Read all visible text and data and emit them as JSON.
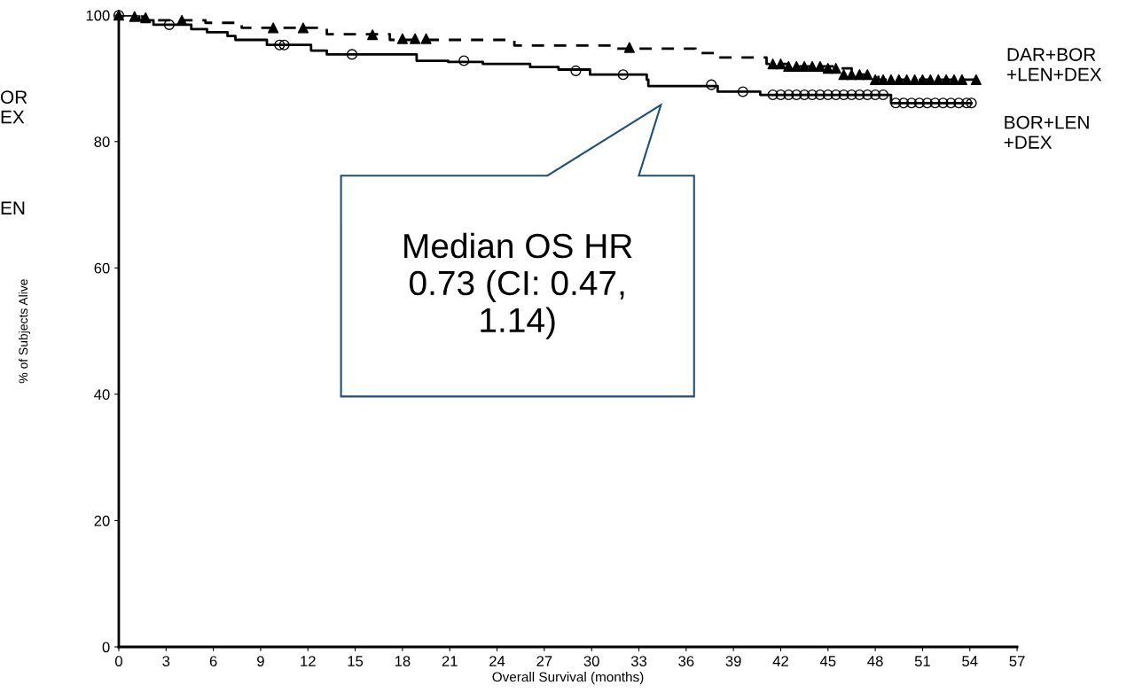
{
  "chart_data": {
    "type": "step",
    "xlabel": "Overall Survival (months)",
    "ylabel": "% of Subjects Alive",
    "xlim": [
      0,
      57
    ],
    "ylim": [
      0,
      100
    ],
    "xticks": [
      0,
      3,
      6,
      9,
      12,
      15,
      18,
      21,
      24,
      27,
      30,
      33,
      36,
      39,
      42,
      45,
      48,
      51,
      54,
      57
    ],
    "yticks": [
      0,
      20,
      40,
      60,
      80,
      100
    ],
    "grid": false,
    "legend": false,
    "series": [
      {
        "name": "DAR+BOR\n+LEN+DEX",
        "color": "#000000",
        "line_style": "dashed",
        "marker": "none",
        "x": [
          0,
          1.5,
          5.5,
          7.8,
          13.2,
          17.2,
          25.1,
          31.3,
          36.6,
          37.8,
          41.1,
          42.5,
          45.4,
          46.5,
          48.2,
          54.6
        ],
        "values": [
          100,
          99.2,
          98.8,
          98.0,
          97.0,
          96.1,
          95.2,
          94.7,
          94.0,
          93.3,
          92.3,
          91.9,
          91.6,
          90.6,
          89.8,
          89.8
        ]
      },
      {
        "name": "BOR+LEN\n+DEX",
        "color": "#000000",
        "line_style": "solid",
        "marker": "none",
        "x": [
          0,
          1.3,
          2.2,
          4.6,
          5.6,
          6.9,
          7.4,
          9.4,
          12.2,
          13.2,
          18.9,
          20.9,
          23.1,
          26.1,
          27.9,
          29.9,
          33.5,
          33.6,
          37.8,
          38.0,
          40.7,
          49.0,
          54.1
        ],
        "values": [
          100,
          99.2,
          98.5,
          97.8,
          97.3,
          96.7,
          96.1,
          95.3,
          94.4,
          93.8,
          92.8,
          92.6,
          92.3,
          91.8,
          91.4,
          90.6,
          89.8,
          88.8,
          88.8,
          87.9,
          87.4,
          86.1,
          86.1
        ]
      },
      {
        "type": "scatter",
        "color": "#000000",
        "marker": "triangle",
        "x": [
          0,
          1,
          1.7,
          4,
          9.8,
          11.7,
          16.1,
          18,
          18.8,
          19.5,
          32.4,
          41.5,
          42,
          42.5,
          43,
          43.5,
          44,
          44.5,
          45,
          45.5,
          46,
          46.5,
          47,
          47.5,
          48,
          48.5,
          49,
          49.5,
          50,
          50.5,
          51,
          51.5,
          52,
          52.5,
          53,
          53.5,
          54.4
        ],
        "values": [
          100,
          99.8,
          99.6,
          99.2,
          98.0,
          98.0,
          96.9,
          96.3,
          96.3,
          96.3,
          94.9,
          92.3,
          92.3,
          91.9,
          91.9,
          91.9,
          91.9,
          91.9,
          91.6,
          91.6,
          90.6,
          90.6,
          90.6,
          90.6,
          89.8,
          89.8,
          89.8,
          89.8,
          89.8,
          89.8,
          89.8,
          89.8,
          89.8,
          89.8,
          89.8,
          89.8,
          89.8
        ]
      },
      {
        "type": "scatter",
        "color": "#000000",
        "marker": "circle",
        "x": [
          0,
          3.2,
          10.2,
          10.5,
          14.8,
          21.9,
          29.0,
          32.0,
          37.6,
          39.6,
          41.5,
          42,
          42.5,
          43,
          43.5,
          44,
          44.5,
          45,
          45.5,
          46,
          46.5,
          47,
          47.5,
          48,
          48.5,
          49.3,
          49.8,
          50.3,
          50.8,
          51.3,
          51.8,
          52.3,
          52.8,
          53.3,
          53.8,
          54.1
        ],
        "values": [
          100,
          98.5,
          95.3,
          95.3,
          93.8,
          92.8,
          91.2,
          90.6,
          89.0,
          87.9,
          87.4,
          87.4,
          87.4,
          87.4,
          87.4,
          87.4,
          87.4,
          87.4,
          87.4,
          87.4,
          87.4,
          87.4,
          87.4,
          87.4,
          87.4,
          86.1,
          86.1,
          86.1,
          86.1,
          86.1,
          86.1,
          86.1,
          86.1,
          86.1,
          86.1,
          86.1
        ]
      }
    ],
    "annotations": [
      "Median OS HR\n0.73 (CI: 0.47,\n1.14)",
      "OR\nEX",
      "EN"
    ]
  }
}
